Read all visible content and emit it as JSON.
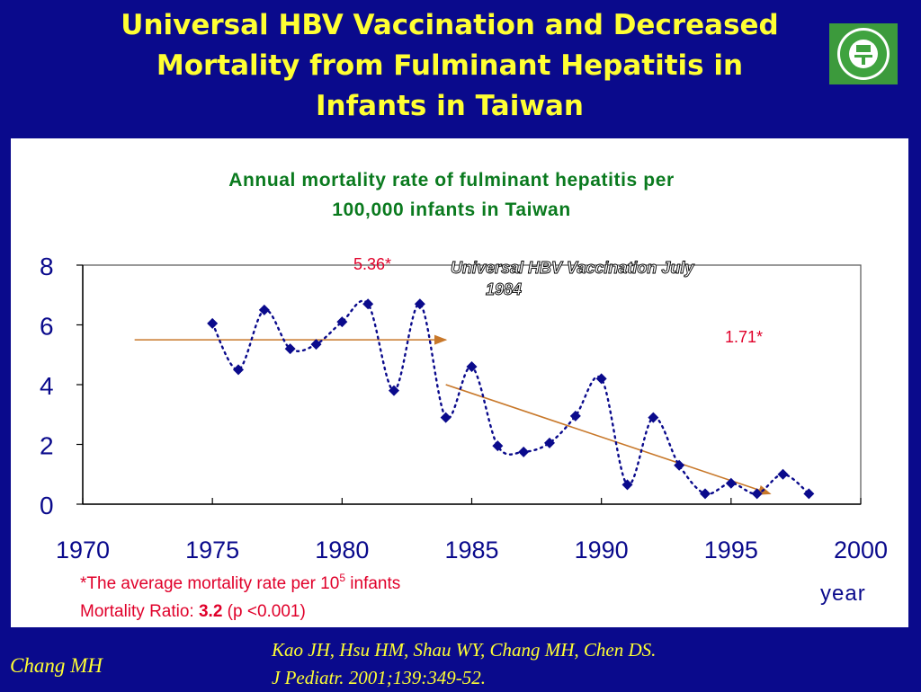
{
  "slide": {
    "title_lines": [
      "Universal HBV Vaccination and Decreased",
      "Mortality from Fulminant Hepatitis in",
      "Infants in Taiwan"
    ],
    "author": "Chang MH",
    "citation_lines": [
      "Kao JH, Hsu HM, Shau WY, Chang MH, Chen DS.",
      "J Pediatr. 2001;139:349-52."
    ],
    "colors": {
      "background": "#0a0a8c",
      "title": "#ffff33",
      "series": "#0a0a8c",
      "trend": "#c8782a",
      "annotation": "#e0002a",
      "chart_title": "#0a7a1e"
    }
  },
  "chart_data": {
    "type": "line",
    "title_lines": [
      "Annual mortality rate of fulminant hepatitis per",
      "100,000 infants in Taiwan"
    ],
    "xlabel": "year",
    "ylabel": "",
    "xlim": [
      1970,
      2000
    ],
    "ylim": [
      0,
      8
    ],
    "xticks": [
      1970,
      1975,
      1980,
      1985,
      1990,
      1995,
      2000
    ],
    "yticks": [
      0,
      2,
      4,
      6,
      8
    ],
    "x": [
      1975,
      1976,
      1977,
      1978,
      1979,
      1980,
      1981,
      1982,
      1983,
      1984,
      1985,
      1986,
      1987,
      1988,
      1989,
      1990,
      1991,
      1992,
      1993,
      1994,
      1995,
      1996,
      1997,
      1998
    ],
    "series": [
      {
        "values": [
          6.05,
          4.5,
          6.5,
          5.2,
          5.35,
          6.1,
          6.7,
          3.8,
          6.7,
          2.9,
          4.6,
          1.95,
          1.75,
          2.05,
          2.95,
          4.2,
          0.65,
          2.9,
          1.3,
          0.35,
          0.7,
          0.35,
          1.0,
          0.35
        ]
      }
    ],
    "trend_lines": [
      {
        "x": [
          1972,
          1984
        ],
        "y": [
          5.5,
          5.5
        ]
      },
      {
        "x": [
          1984,
          1996.5
        ],
        "y": [
          4.0,
          0.35
        ]
      }
    ],
    "annotations": {
      "pre_mean": "5.36*",
      "post_mean": "1.71*",
      "vaccination_lines": [
        "Universal HBV Vaccination July",
        "1984"
      ]
    },
    "footnote_line1_prefix": "*The average mortality rate per 10",
    "footnote_line1_exp": "5",
    "footnote_line1_suffix": " infants",
    "ratio_label": "Mortality Ratio: ",
    "ratio_value": "3.2",
    "ratio_p": " (p <0.001)"
  }
}
